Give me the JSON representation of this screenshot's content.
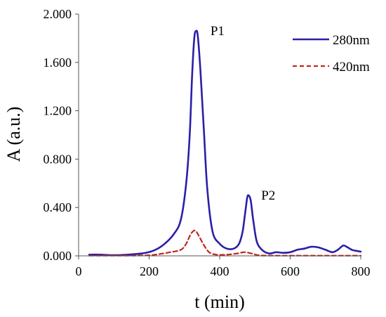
{
  "chart_data": {
    "type": "line",
    "xlabel": "t (min)",
    "ylabel": "A (a.u.)",
    "xlim": [
      0,
      800
    ],
    "ylim": [
      0,
      2.0
    ],
    "x_ticks": [
      "0",
      "200",
      "400",
      "600",
      "800"
    ],
    "y_ticks": [
      "0.000",
      "0.400",
      "0.800",
      "1.200",
      "1.600",
      "2.000"
    ],
    "grid": false,
    "legend": "top-right",
    "series": [
      {
        "name": "280nm",
        "color": "#2b1fa8",
        "style": "solid",
        "x": [
          30,
          60,
          100,
          140,
          180,
          210,
          240,
          270,
          290,
          305,
          315,
          322,
          328,
          333,
          338,
          345,
          355,
          365,
          380,
          400,
          420,
          440,
          455,
          465,
          472,
          478,
          482,
          488,
          495,
          505,
          520,
          540,
          560,
          580,
          600,
          620,
          640,
          660,
          680,
          700,
          720,
          735,
          750,
          760,
          775,
          790,
          800
        ],
        "y": [
          0.01,
          0.01,
          0.005,
          0.01,
          0.02,
          0.04,
          0.09,
          0.18,
          0.3,
          0.6,
          1.0,
          1.5,
          1.8,
          1.86,
          1.82,
          1.55,
          1.05,
          0.55,
          0.2,
          0.1,
          0.06,
          0.06,
          0.1,
          0.2,
          0.35,
          0.48,
          0.5,
          0.46,
          0.3,
          0.12,
          0.05,
          0.02,
          0.03,
          0.025,
          0.03,
          0.05,
          0.06,
          0.075,
          0.07,
          0.05,
          0.03,
          0.05,
          0.085,
          0.075,
          0.05,
          0.04,
          0.035
        ]
      },
      {
        "name": "420nm",
        "color": "#c0281d",
        "style": "dashed",
        "x": [
          30,
          100,
          150,
          200,
          230,
          260,
          290,
          305,
          318,
          330,
          340,
          355,
          370,
          390,
          420,
          450,
          470,
          490,
          510,
          540,
          600,
          700,
          800
        ],
        "y": [
          0.002,
          0.002,
          0.002,
          0.005,
          0.015,
          0.03,
          0.05,
          0.1,
          0.18,
          0.21,
          0.17,
          0.09,
          0.03,
          0.01,
          0.01,
          0.02,
          0.03,
          0.02,
          0.005,
          0.002,
          0.002,
          0.002,
          0.002
        ]
      }
    ],
    "annotations": [
      {
        "text": "P1",
        "x": 338,
        "y": 1.86
      },
      {
        "text": "P2",
        "x": 482,
        "y": 0.5
      }
    ]
  }
}
